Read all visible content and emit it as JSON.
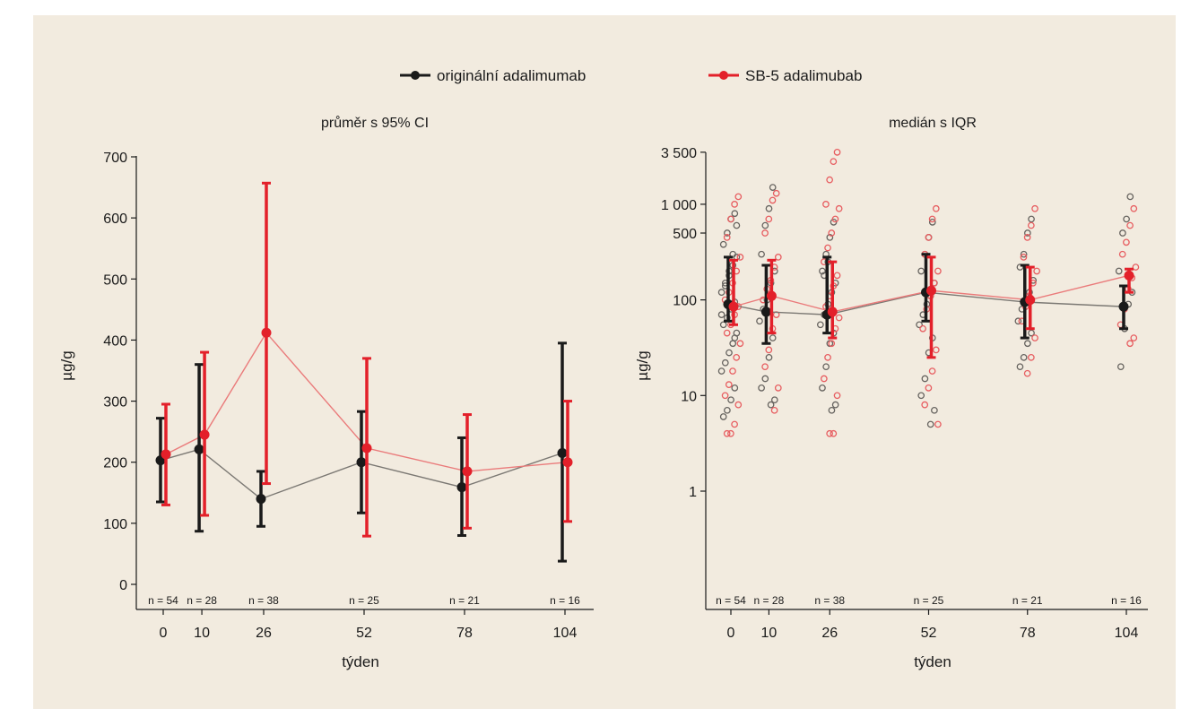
{
  "legend": {
    "items": [
      {
        "label": "originální adalimumab",
        "color": "#1a1a1a"
      },
      {
        "label": "SB-5 adalimubab",
        "color": "#e3202a"
      }
    ]
  },
  "chart_data": [
    {
      "type": "line",
      "title": "průměr s 95% CI",
      "xlabel": "týden",
      "ylabel": "µg/g",
      "x": [
        0,
        10,
        26,
        52,
        78,
        104
      ],
      "xticks": [
        "0",
        "10",
        "26",
        "52",
        "78",
        "104"
      ],
      "yticks": [
        "0",
        "100",
        "200",
        "300",
        "400",
        "500",
        "600",
        "700"
      ],
      "ylim": [
        0,
        700
      ],
      "n_labels": [
        "n = 54",
        "n = 28",
        "n = 38",
        "n = 25",
        "n = 21",
        "n = 16"
      ],
      "grid": false,
      "series": [
        {
          "name": "originální adalimumab",
          "color": "#1a1a1a",
          "values": [
            203,
            221,
            140,
            200,
            159,
            215
          ],
          "lower": [
            135,
            87,
            95,
            117,
            80,
            38
          ],
          "upper": [
            272,
            360,
            185,
            283,
            240,
            395
          ]
        },
        {
          "name": "SB-5 adalimubab",
          "color": "#e3202a",
          "values": [
            213,
            245,
            412,
            223,
            185,
            200
          ],
          "lower": [
            130,
            113,
            165,
            79,
            92,
            103
          ],
          "upper": [
            295,
            380,
            657,
            370,
            278,
            300
          ]
        }
      ]
    },
    {
      "type": "scatter",
      "title": "medián s IQR",
      "xlabel": "týden",
      "ylabel": "µg/g",
      "yscale": "log",
      "x": [
        0,
        10,
        26,
        52,
        78,
        104
      ],
      "xticks": [
        "0",
        "10",
        "26",
        "52",
        "78",
        "104"
      ],
      "yticks": [
        {
          "value": 1,
          "label": "1"
        },
        {
          "value": 10,
          "label": "10"
        },
        {
          "value": 100,
          "label": "100"
        },
        {
          "value": 500,
          "label": "500"
        },
        {
          "value": 1000,
          "label": "1 000"
        },
        {
          "value": 3500,
          "label": "3 500"
        }
      ],
      "ylim": [
        0.1,
        3500
      ],
      "n_labels": [
        "n = 54",
        "n = 28",
        "n = 38",
        "n = 25",
        "n = 21",
        "n = 16"
      ],
      "grid": false,
      "series": [
        {
          "name": "originální adalimumab",
          "color": "#1a1a1a",
          "values": [
            90,
            75,
            70,
            120,
            95,
            85
          ],
          "lower": [
            60,
            35,
            45,
            60,
            40,
            50
          ],
          "upper": [
            280,
            230,
            280,
            300,
            230,
            140
          ],
          "points": [
            [
              0,
              800
            ],
            [
              0,
              700
            ],
            [
              0,
              500
            ],
            [
              0,
              380
            ],
            [
              0,
              280
            ],
            [
              0,
              230
            ],
            [
              0,
              180
            ],
            [
              0,
              140
            ],
            [
              0,
              120
            ],
            [
              0,
              95
            ],
            [
              0,
              80
            ],
            [
              0,
              65
            ],
            [
              0,
              55
            ],
            [
              0,
              45
            ],
            [
              0,
              35
            ],
            [
              0,
              28
            ],
            [
              0,
              22
            ],
            [
              0,
              18
            ],
            [
              0,
              12
            ],
            [
              0,
              9
            ],
            [
              0,
              7
            ],
            [
              0,
              6
            ],
            [
              0,
              600
            ],
            [
              0,
              300
            ],
            [
              0,
              200
            ],
            [
              0,
              150
            ],
            [
              0,
              70
            ],
            [
              0,
              40
            ],
            [
              10,
              1500
            ],
            [
              10,
              900
            ],
            [
              10,
              600
            ],
            [
              10,
              300
            ],
            [
              10,
              200
            ],
            [
              10,
              150
            ],
            [
              10,
              100
            ],
            [
              10,
              80
            ],
            [
              10,
              60
            ],
            [
              10,
              40
            ],
            [
              10,
              25
            ],
            [
              10,
              15
            ],
            [
              10,
              12
            ],
            [
              10,
              9
            ],
            [
              10,
              8
            ],
            [
              26,
              650
            ],
            [
              26,
              450
            ],
            [
              26,
              300
            ],
            [
              26,
              200
            ],
            [
              26,
              150
            ],
            [
              26,
              120
            ],
            [
              26,
              90
            ],
            [
              26,
              70
            ],
            [
              26,
              55
            ],
            [
              26,
              45
            ],
            [
              26,
              35
            ],
            [
              26,
              20
            ],
            [
              26,
              12
            ],
            [
              26,
              8
            ],
            [
              26,
              7
            ],
            [
              26,
              250
            ],
            [
              26,
              180
            ],
            [
              52,
              650
            ],
            [
              52,
              450
            ],
            [
              52,
              300
            ],
            [
              52,
              200
            ],
            [
              52,
              150
            ],
            [
              52,
              110
            ],
            [
              52,
              90
            ],
            [
              52,
              70
            ],
            [
              52,
              55
            ],
            [
              52,
              40
            ],
            [
              52,
              28
            ],
            [
              52,
              15
            ],
            [
              52,
              10
            ],
            [
              52,
              7
            ],
            [
              52,
              5
            ],
            [
              78,
              700
            ],
            [
              78,
              500
            ],
            [
              78,
              300
            ],
            [
              78,
              220
            ],
            [
              78,
              160
            ],
            [
              78,
              120
            ],
            [
              78,
              100
            ],
            [
              78,
              80
            ],
            [
              78,
              60
            ],
            [
              78,
              45
            ],
            [
              78,
              35
            ],
            [
              78,
              25
            ],
            [
              78,
              20
            ],
            [
              104,
              1200
            ],
            [
              104,
              700
            ],
            [
              104,
              500
            ],
            [
              104,
              200
            ],
            [
              104,
              120
            ],
            [
              104,
              90
            ],
            [
              104,
              50
            ],
            [
              104,
              20
            ]
          ]
        },
        {
          "name": "SB-5 adalimubab",
          "color": "#e3202a",
          "values": [
            85,
            110,
            75,
            125,
            100,
            180
          ],
          "lower": [
            55,
            45,
            40,
            25,
            50,
            120
          ],
          "upper": [
            260,
            260,
            250,
            280,
            220,
            210
          ],
          "points": [
            [
              0,
              1200
            ],
            [
              0,
              1000
            ],
            [
              0,
              700
            ],
            [
              0,
              450
            ],
            [
              0,
              280
            ],
            [
              0,
              200
            ],
            [
              0,
              150
            ],
            [
              0,
              120
            ],
            [
              0,
              100
            ],
            [
              0,
              85
            ],
            [
              0,
              70
            ],
            [
              0,
              55
            ],
            [
              0,
              45
            ],
            [
              0,
              35
            ],
            [
              0,
              25
            ],
            [
              0,
              18
            ],
            [
              0,
              13
            ],
            [
              0,
              10
            ],
            [
              0,
              8
            ],
            [
              0,
              5
            ],
            [
              0,
              4
            ],
            [
              0,
              4
            ],
            [
              10,
              1300
            ],
            [
              10,
              1100
            ],
            [
              10,
              700
            ],
            [
              10,
              500
            ],
            [
              10,
              280
            ],
            [
              10,
              220
            ],
            [
              10,
              160
            ],
            [
              10,
              130
            ],
            [
              10,
              100
            ],
            [
              10,
              70
            ],
            [
              10,
              50
            ],
            [
              10,
              30
            ],
            [
              10,
              20
            ],
            [
              10,
              12
            ],
            [
              10,
              7
            ],
            [
              26,
              3500
            ],
            [
              26,
              2800
            ],
            [
              26,
              1800
            ],
            [
              26,
              1000
            ],
            [
              26,
              900
            ],
            [
              26,
              700
            ],
            [
              26,
              500
            ],
            [
              26,
              350
            ],
            [
              26,
              250
            ],
            [
              26,
              180
            ],
            [
              26,
              140
            ],
            [
              26,
              110
            ],
            [
              26,
              85
            ],
            [
              26,
              65
            ],
            [
              26,
              50
            ],
            [
              26,
              35
            ],
            [
              26,
              25
            ],
            [
              26,
              15
            ],
            [
              26,
              10
            ],
            [
              26,
              4
            ],
            [
              26,
              4
            ],
            [
              52,
              900
            ],
            [
              52,
              700
            ],
            [
              52,
              450
            ],
            [
              52,
              300
            ],
            [
              52,
              200
            ],
            [
              52,
              150
            ],
            [
              52,
              110
            ],
            [
              52,
              80
            ],
            [
              52,
              50
            ],
            [
              52,
              30
            ],
            [
              52,
              18
            ],
            [
              52,
              12
            ],
            [
              52,
              8
            ],
            [
              52,
              5
            ],
            [
              78,
              900
            ],
            [
              78,
              600
            ],
            [
              78,
              450
            ],
            [
              78,
              280
            ],
            [
              78,
              200
            ],
            [
              78,
              150
            ],
            [
              78,
              110
            ],
            [
              78,
              85
            ],
            [
              78,
              60
            ],
            [
              78,
              40
            ],
            [
              78,
              25
            ],
            [
              78,
              17
            ],
            [
              104,
              900
            ],
            [
              104,
              600
            ],
            [
              104,
              400
            ],
            [
              104,
              300
            ],
            [
              104,
              220
            ],
            [
              104,
              170
            ],
            [
              104,
              130
            ],
            [
              104,
              80
            ],
            [
              104,
              55
            ],
            [
              104,
              40
            ],
            [
              104,
              35
            ]
          ]
        }
      ]
    }
  ]
}
